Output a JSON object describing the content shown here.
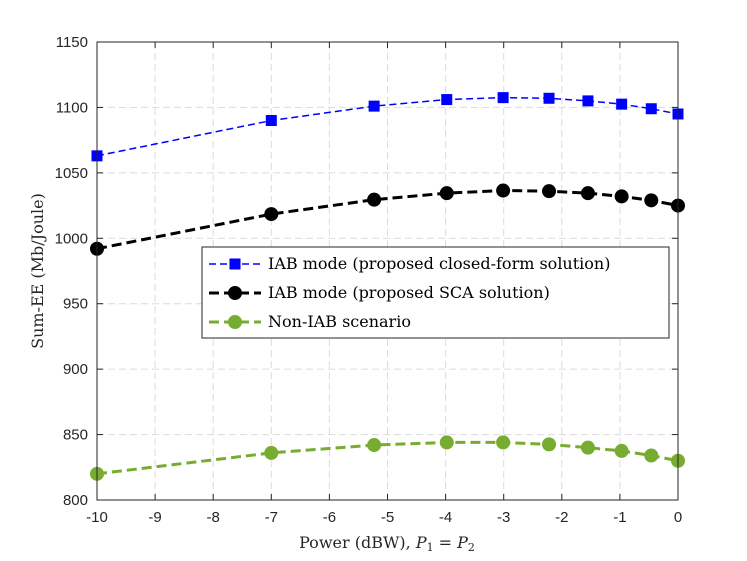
{
  "chart_data": {
    "type": "line",
    "xlabel": "Power (dBW), ",
    "xlabel_math": {
      "p1": "P",
      "s1": "1",
      "eq": " = ",
      "p2": "P",
      "s2": "2"
    },
    "ylabel": "Sum-EE (Mb/Joule)",
    "xlim": [
      -10,
      0
    ],
    "ylim": [
      800,
      1150
    ],
    "xticks": [
      -10,
      -9,
      -8,
      -7,
      -6,
      -5,
      -4,
      -3,
      -2,
      -1,
      0
    ],
    "yticks": [
      800,
      850,
      900,
      950,
      1000,
      1050,
      1100,
      1150
    ],
    "grid": true,
    "legend_position": "center-right",
    "series": [
      {
        "name": "IAB mode (proposed closed-form solution)",
        "color": "#0000ff",
        "marker": "square",
        "line_style": "dashed-thin",
        "x": [
          -10,
          -7,
          -5.23,
          -3.98,
          -3.01,
          -2.22,
          -1.55,
          -0.97,
          -0.46,
          0
        ],
        "y": [
          1063,
          1090,
          1101,
          1106,
          1107.5,
          1107,
          1105,
          1102.5,
          1099,
          1095
        ]
      },
      {
        "name": "IAB mode (proposed SCA solution)",
        "color": "#000000",
        "marker": "circle",
        "line_style": "dashed-thick",
        "x": [
          -10,
          -7,
          -5.23,
          -3.98,
          -3.01,
          -2.22,
          -1.55,
          -0.97,
          -0.46,
          0
        ],
        "y": [
          992,
          1018.5,
          1029.5,
          1034.5,
          1036.5,
          1036,
          1034.5,
          1032,
          1029,
          1025
        ]
      },
      {
        "name": "Non-IAB scenario",
        "color": "#77ac30",
        "marker": "circle",
        "line_style": "dashed-thick",
        "x": [
          -10,
          -7,
          -5.23,
          -3.98,
          -3.01,
          -2.22,
          -1.55,
          -0.97,
          -0.46,
          0
        ],
        "y": [
          820,
          836,
          842,
          844,
          844,
          842.5,
          840,
          837.5,
          834,
          830
        ]
      }
    ]
  }
}
